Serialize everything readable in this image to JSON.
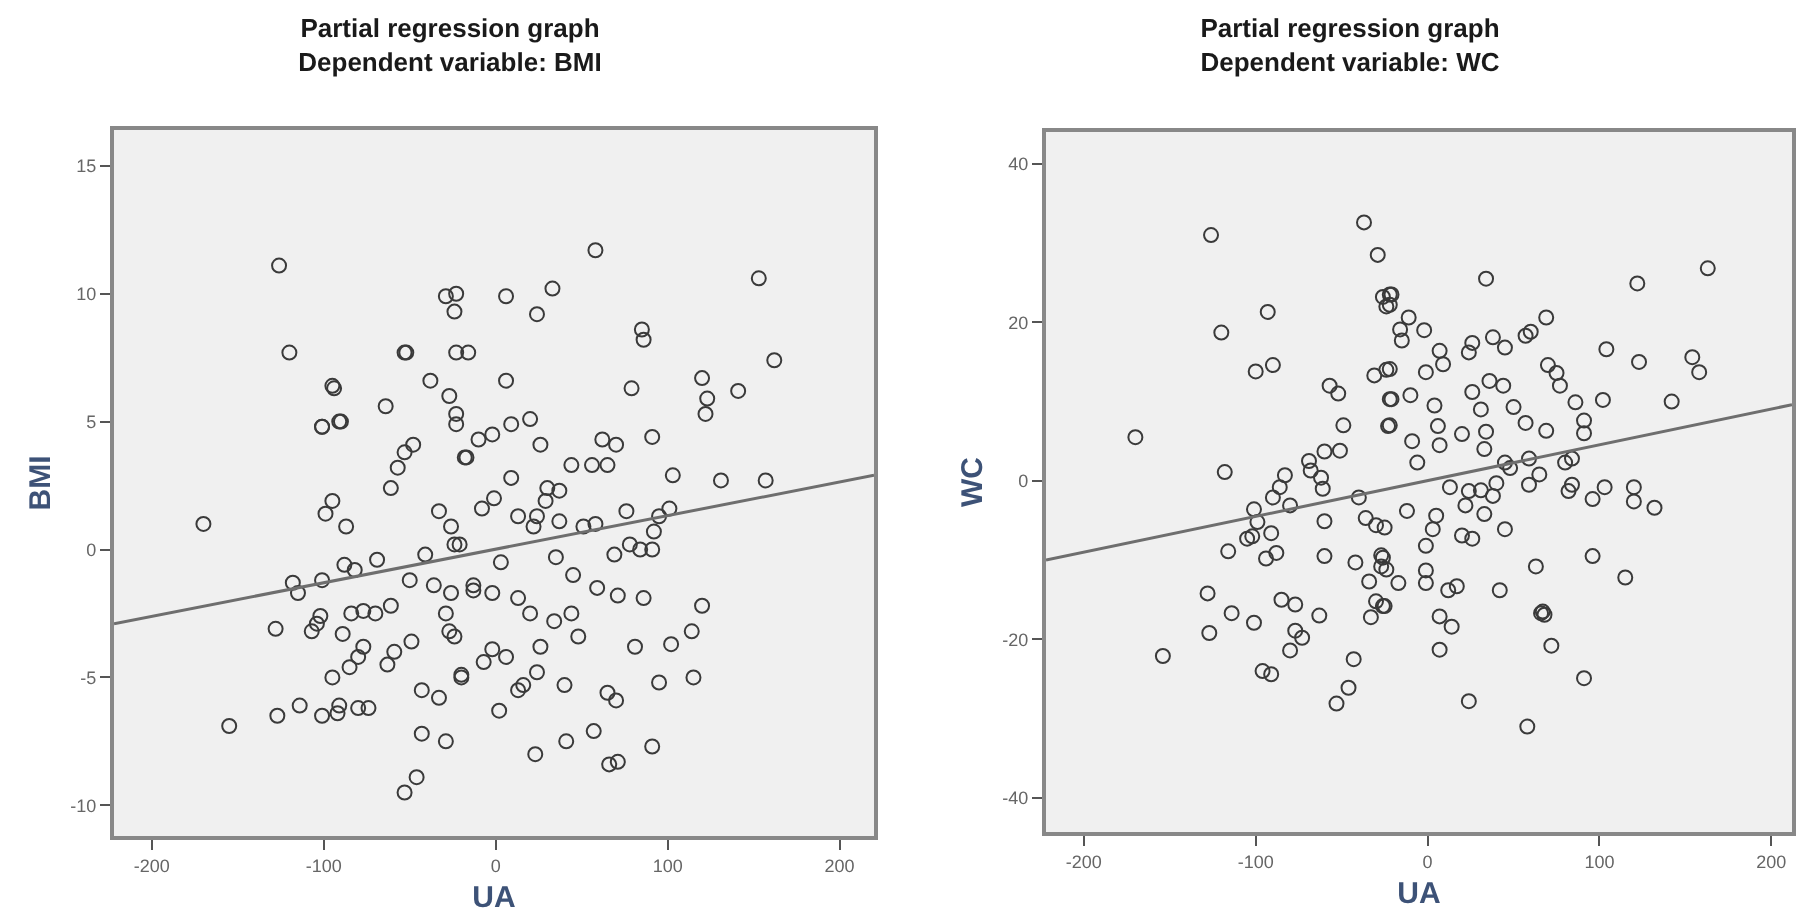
{
  "chart_data": [
    {
      "type": "scatter",
      "title": "Partial regression graph",
      "subtitle": "Dependent variable: BMI",
      "xlabel": "UA",
      "ylabel": "BMI",
      "xlim": [
        -222,
        220
      ],
      "ylim": [
        -11.2,
        16.4
      ],
      "xticks": [
        -200,
        -100,
        0,
        100,
        200
      ],
      "yticks": [
        -10,
        -5,
        0,
        5,
        10,
        15
      ],
      "grid": false,
      "series": [
        {
          "marker": "circle",
          "color": "#3a3a3a",
          "x": [
            -126,
            -120,
            -94,
            -101,
            -91,
            -64,
            -52,
            -38,
            -29,
            -23,
            -24,
            -23,
            -16,
            -27,
            -23,
            -23,
            -17,
            -53,
            -48,
            -53,
            -57,
            -61,
            -95,
            -90,
            -101,
            -95,
            -99,
            -87,
            -170,
            -33,
            -26,
            -24,
            -41,
            -69,
            -82,
            -88,
            -101,
            -118,
            -115,
            -50,
            -36,
            -26,
            -13,
            -128,
            -107,
            -102,
            -104,
            -84,
            -77,
            -70,
            -61,
            -89,
            -77,
            -80,
            -85,
            -59,
            -63,
            -49,
            -29,
            -27,
            -24,
            -20,
            -95,
            -43,
            -33,
            -114,
            -127,
            -101,
            -91,
            -92,
            -80,
            -74,
            -155,
            -43,
            -29,
            -46,
            -53,
            58,
            153,
            6,
            33,
            24,
            85,
            86,
            6,
            120,
            123,
            122,
            141,
            162,
            79,
            9,
            20,
            -2,
            -10,
            -18,
            26,
            62,
            70,
            91,
            44,
            56,
            65,
            9,
            103,
            131,
            157,
            30,
            37,
            29,
            -1,
            -8,
            13,
            24,
            37,
            22,
            51,
            58,
            76,
            95,
            101,
            92,
            -21,
            78,
            84,
            91,
            3,
            35,
            69,
            45,
            -13,
            -2,
            13,
            20,
            59,
            71,
            86,
            120,
            34,
            44,
            48,
            26,
            -2,
            -7,
            6,
            -20,
            81,
            102,
            114,
            115,
            95,
            24,
            16,
            13,
            40,
            2,
            65,
            70,
            23,
            41,
            57,
            91,
            66,
            71
          ],
          "values": [
            11.1,
            7.7,
            6.3,
            4.8,
            5.0,
            5.6,
            7.7,
            6.6,
            9.9,
            10,
            9.3,
            7.7,
            7.7,
            6.0,
            5.3,
            4.9,
            3.6,
            7.7,
            4.1,
            3.8,
            3.2,
            2.4,
            6.4,
            5.0,
            4.8,
            1.9,
            1.4,
            0.9,
            1.0,
            1.5,
            0.9,
            0.2,
            -0.2,
            -0.4,
            -0.8,
            -0.6,
            -1.2,
            -1.3,
            -1.7,
            -1.2,
            -1.4,
            -1.7,
            -1.6,
            -3.1,
            -3.2,
            -2.6,
            -2.9,
            -2.5,
            -2.4,
            -2.5,
            -2.2,
            -3.3,
            -3.8,
            -4.2,
            -4.6,
            -4.0,
            -4.5,
            -3.6,
            -2.5,
            -3.2,
            -3.4,
            -5.0,
            -5.0,
            -5.5,
            -5.8,
            -6.1,
            -6.5,
            -6.5,
            -6.1,
            -6.4,
            -6.2,
            -6.2,
            -6.9,
            -7.2,
            -7.5,
            -8.9,
            -9.5,
            11.7,
            10.6,
            9.9,
            10.2,
            9.2,
            8.6,
            8.2,
            6.6,
            6.7,
            5.9,
            5.3,
            6.2,
            7.4,
            6.3,
            4.9,
            5.1,
            4.5,
            4.3,
            3.6,
            4.1,
            4.3,
            4.1,
            4.4,
            3.3,
            3.3,
            3.3,
            2.8,
            2.9,
            2.7,
            2.7,
            2.4,
            2.3,
            1.9,
            2.0,
            1.6,
            1.3,
            1.3,
            1.1,
            0.9,
            0.9,
            1.0,
            1.5,
            1.3,
            1.6,
            0.7,
            0.2,
            0.2,
            0.0,
            0.0,
            -0.5,
            -0.3,
            -0.2,
            -1.0,
            -1.4,
            -1.7,
            -1.9,
            -2.5,
            -1.5,
            -1.8,
            -1.9,
            -2.2,
            -2.8,
            -2.5,
            -3.4,
            -3.8,
            -3.9,
            -4.4,
            -4.2,
            -4.9,
            -3.8,
            -3.7,
            -3.2,
            -5.0,
            -5.2,
            -4.8,
            -5.3,
            -5.5,
            -5.3,
            -6.3,
            -5.6,
            -5.9,
            -8.0,
            -7.5,
            -7.1,
            -7.7,
            -8.4,
            -8.3
          ]
        },
        {
          "type": "line",
          "color": "#6e6e6e",
          "x": [
            -222,
            220
          ],
          "values": [
            -2.9,
            2.9
          ]
        }
      ]
    },
    {
      "type": "scatter",
      "title": "Partial regression graph",
      "subtitle": "Dependent variable: WC",
      "xlabel": "UA",
      "ylabel": "WC",
      "xlim": [
        -222,
        212
      ],
      "ylim": [
        -44.3,
        44
      ],
      "xticks": [
        -200,
        -100,
        0,
        100,
        200
      ],
      "yticks": [
        -40,
        -20,
        0,
        20,
        40
      ],
      "grid": false,
      "series": [
        {
          "marker": "circle",
          "color": "#3a3a3a",
          "x": [
            -37,
            -29,
            -126,
            -93,
            -120,
            -26,
            -24,
            -22,
            -100,
            -90,
            -31,
            -24,
            -57,
            -52,
            -22,
            -170,
            -49,
            -51,
            -60,
            -23,
            -118,
            -69,
            -68,
            -62,
            -61,
            -83,
            -86,
            -90,
            -80,
            -101,
            -99,
            -105,
            -102,
            -91,
            -88,
            -94,
            -116,
            -60,
            -60,
            -40,
            -36,
            -30,
            -25,
            -42,
            -34,
            -27,
            -27,
            -128,
            -114,
            -101,
            -127,
            -85,
            -77,
            -63,
            -33,
            -26,
            -77,
            -73,
            -80,
            -154,
            -96,
            -91,
            -43,
            -46,
            -53,
            34,
            122,
            163,
            -21,
            -22,
            -11,
            -16,
            -2,
            -15,
            69,
            60,
            57,
            38,
            45,
            7,
            9,
            26,
            24,
            104,
            123,
            154,
            158,
            -22,
            -1,
            70,
            75,
            77,
            36,
            44,
            26,
            -21,
            -10,
            4,
            86,
            102,
            142,
            31,
            50,
            57,
            -22,
            6,
            91,
            91,
            69,
            20,
            34,
            -9,
            7,
            33,
            -6,
            45,
            59,
            48,
            80,
            84,
            65,
            59,
            13,
            24,
            31,
            40,
            38,
            22,
            33,
            82,
            84,
            96,
            103,
            120,
            120,
            132,
            -12,
            5,
            3,
            -1,
            20,
            26,
            45,
            96,
            -26,
            -24,
            -1,
            -1,
            -17,
            12,
            17,
            42,
            63,
            115,
            -30,
            -25,
            7,
            14,
            66,
            68,
            67,
            7,
            72,
            91,
            24,
            58
          ],
          "values": [
            32.6,
            28.5,
            31.0,
            21.3,
            18.7,
            23.2,
            22.0,
            23.5,
            13.8,
            14.6,
            13.3,
            14.0,
            12.0,
            11.0,
            10.3,
            5.5,
            7.0,
            3.8,
            3.7,
            6.9,
            1.1,
            2.5,
            1.3,
            0.4,
            -1.0,
            0.7,
            -0.8,
            -2.1,
            -3.1,
            -3.6,
            -5.2,
            -7.3,
            -7.0,
            -6.6,
            -9.1,
            -9.8,
            -8.9,
            -5.1,
            -9.5,
            -2.1,
            -4.7,
            -5.6,
            -5.9,
            -10.3,
            -12.7,
            -9.4,
            -10.8,
            -14.2,
            -16.7,
            -17.9,
            -19.2,
            -15.0,
            -15.6,
            -17.0,
            -17.2,
            -15.8,
            -18.9,
            -19.8,
            -21.4,
            -22.1,
            -24.0,
            -24.4,
            -22.5,
            -26.1,
            -28.1,
            25.5,
            24.9,
            26.8,
            23.5,
            22.2,
            20.6,
            19.1,
            19.0,
            17.7,
            20.6,
            18.8,
            18.3,
            18.1,
            16.8,
            16.4,
            14.7,
            17.4,
            16.2,
            16.6,
            15.0,
            15.6,
            13.7,
            14.1,
            13.7,
            14.6,
            13.6,
            12.0,
            12.6,
            12.0,
            11.2,
            10.3,
            10.8,
            9.5,
            9.9,
            10.2,
            10.0,
            9.0,
            9.3,
            7.3,
            7.0,
            6.9,
            7.6,
            6.0,
            6.3,
            5.9,
            6.2,
            5.0,
            4.5,
            4.0,
            2.3,
            2.3,
            2.8,
            1.6,
            2.3,
            2.8,
            0.8,
            -0.5,
            -0.8,
            -1.3,
            -1.2,
            -0.3,
            -1.9,
            -3.1,
            -4.2,
            -1.3,
            -0.5,
            -2.3,
            -0.8,
            -0.8,
            -2.6,
            -3.4,
            -3.8,
            -4.4,
            -6.1,
            -8.2,
            -6.9,
            -7.3,
            -6.1,
            -9.5,
            -9.7,
            -11.2,
            -11.3,
            -12.9,
            -12.9,
            -13.8,
            -13.3,
            -13.8,
            -10.8,
            -12.2,
            -15.2,
            -15.8,
            -17.1,
            -18.4,
            -16.7,
            -16.9,
            -16.5,
            -21.3,
            -20.8,
            -24.9,
            -27.8,
            -31.0
          ]
        },
        {
          "type": "line",
          "color": "#6e6e6e",
          "x": [
            -222,
            212
          ],
          "values": [
            -10,
            9.6
          ]
        }
      ]
    }
  ]
}
